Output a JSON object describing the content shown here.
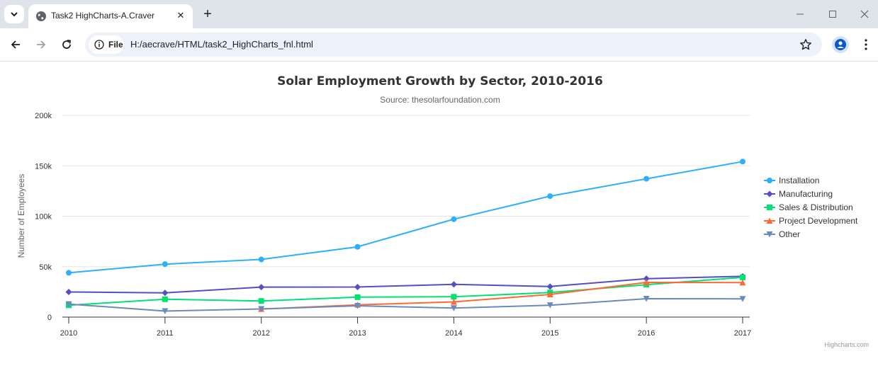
{
  "browser": {
    "tab_title": "Task2 HighCharts-A.Craver",
    "site_chip_label": "File",
    "url": "H:/aecrave/HTML/task2_HighCharts_fnl.html"
  },
  "credits": "Highcharts.com",
  "chart_data": {
    "type": "line",
    "title": "Solar Employment Growth by Sector, 2010-2016",
    "subtitle": "Source: thesolarfoundation.com",
    "ylabel": "Number of Employees",
    "xlabel": "",
    "x": [
      2010,
      2011,
      2012,
      2013,
      2014,
      2015,
      2016,
      2017
    ],
    "x_tick_labels": [
      "2010",
      "2011",
      "2012",
      "2013",
      "2014",
      "2015",
      "2016",
      "2017"
    ],
    "ylim": [
      0,
      200000
    ],
    "y_ticks": [
      0,
      50000,
      100000,
      150000,
      200000
    ],
    "y_tick_labels": [
      "0",
      "50k",
      "100k",
      "150k",
      "200k"
    ],
    "grid": true,
    "legend_position": "right",
    "series": [
      {
        "name": "Installation",
        "color": "#2caffe",
        "marker": "circle",
        "values": [
          43934,
          52503,
          57177,
          69658,
          97031,
          119931,
          137133,
          154175
        ]
      },
      {
        "name": "Manufacturing",
        "color": "#544fc5",
        "marker": "diamond",
        "values": [
          24916,
          24064,
          29742,
          29851,
          32490,
          30282,
          38121,
          40434
        ]
      },
      {
        "name": "Sales & Distribution",
        "color": "#00e272",
        "marker": "square",
        "values": [
          11744,
          17722,
          16005,
          19771,
          20185,
          24377,
          32147,
          39387
        ]
      },
      {
        "name": "Project Development",
        "color": "#fe6a35",
        "marker": "triangle",
        "values": [
          null,
          null,
          7988,
          12169,
          15112,
          22452,
          34400,
          34227
        ]
      },
      {
        "name": "Other",
        "color": "#6b8abc",
        "marker": "triangle-down",
        "values": [
          12908,
          5948,
          8105,
          11248,
          8989,
          11816,
          18274,
          18111
        ]
      }
    ]
  }
}
